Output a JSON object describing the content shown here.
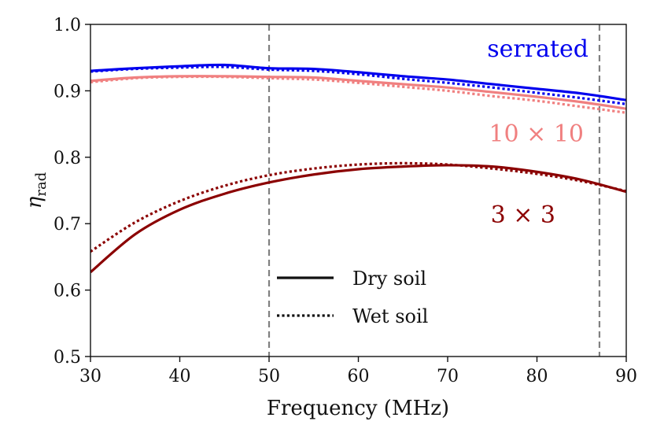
{
  "chart_data": {
    "type": "line",
    "xlabel": "Frequency (MHz)",
    "ylabel": "η",
    "ylabel_sub": "rad",
    "xlim": [
      30,
      90
    ],
    "ylim": [
      0.5,
      1.0
    ],
    "xticks": [
      30,
      40,
      50,
      60,
      70,
      80,
      90
    ],
    "yticks": [
      "0.5",
      "0.6",
      "0.7",
      "0.8",
      "0.9",
      "1.0"
    ],
    "grid": false,
    "vlines": [
      50,
      87
    ],
    "legend": {
      "placement": "lower-center",
      "entries": [
        {
          "label": "Dry soil",
          "style": "solid"
        },
        {
          "label": "Wet soil",
          "style": "dotted"
        }
      ]
    },
    "annotations": [
      {
        "text": "serrated",
        "color": "#0000ee"
      },
      {
        "text": "10 × 10",
        "color": "#f08080"
      },
      {
        "text": "3 × 3",
        "color": "#8b0000"
      }
    ],
    "x": [
      30,
      35,
      40,
      45,
      50,
      55,
      60,
      65,
      70,
      75,
      80,
      85,
      90
    ],
    "series": [
      {
        "group": "serrated",
        "style": "solid",
        "color": "#0000ee",
        "values": [
          0.93,
          0.934,
          0.937,
          0.939,
          0.934,
          0.933,
          0.928,
          0.922,
          0.917,
          0.91,
          0.903,
          0.896,
          0.886
        ]
      },
      {
        "group": "serrated",
        "style": "dotted",
        "color": "#0000ee",
        "values": [
          0.929,
          0.933,
          0.935,
          0.936,
          0.932,
          0.93,
          0.925,
          0.918,
          0.912,
          0.905,
          0.897,
          0.889,
          0.88
        ]
      },
      {
        "group": "10 × 10",
        "style": "solid",
        "color": "#f08080",
        "values": [
          0.915,
          0.92,
          0.922,
          0.922,
          0.921,
          0.92,
          0.915,
          0.91,
          0.905,
          0.898,
          0.891,
          0.883,
          0.873
        ]
      },
      {
        "group": "10 × 10",
        "style": "dotted",
        "color": "#f08080",
        "values": [
          0.913,
          0.919,
          0.921,
          0.921,
          0.919,
          0.917,
          0.912,
          0.906,
          0.9,
          0.892,
          0.885,
          0.876,
          0.867
        ]
      },
      {
        "group": "3 × 3",
        "style": "solid",
        "color": "#8b0000",
        "values": [
          0.627,
          0.684,
          0.721,
          0.745,
          0.762,
          0.774,
          0.782,
          0.786,
          0.788,
          0.786,
          0.778,
          0.766,
          0.748
        ]
      },
      {
        "group": "3 × 3",
        "style": "dotted",
        "color": "#8b0000",
        "values": [
          0.658,
          0.702,
          0.734,
          0.757,
          0.773,
          0.783,
          0.789,
          0.791,
          0.789,
          0.783,
          0.775,
          0.764,
          0.749
        ]
      }
    ]
  }
}
